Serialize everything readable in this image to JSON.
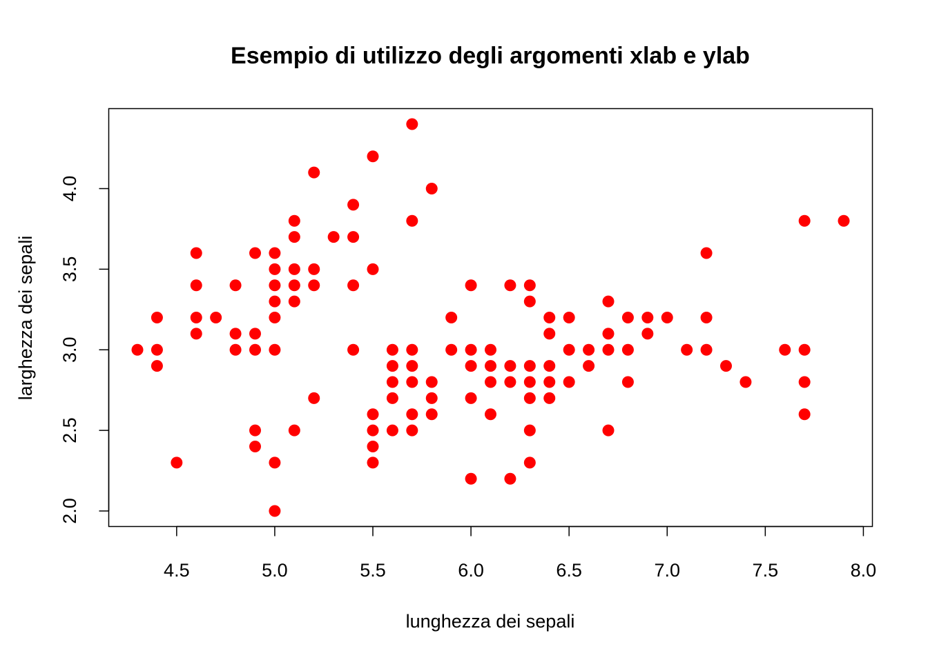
{
  "chart_data": {
    "type": "scatter",
    "title": "Esempio di utilizzo degli argomenti xlab e ylab",
    "xlabel": "lunghezza dei sepali",
    "ylabel": "larghezza dei sepali",
    "xlim": [
      4.3,
      7.9
    ],
    "ylim": [
      2.0,
      4.4
    ],
    "x_ticks": [
      "4.5",
      "5.0",
      "5.5",
      "6.0",
      "6.5",
      "7.0",
      "7.5",
      "8.0"
    ],
    "y_ticks": [
      "2.0",
      "2.5",
      "3.0",
      "3.5",
      "4.0"
    ],
    "grid": false,
    "marker_color": "#ff0000",
    "points": [
      [
        4.3,
        3.0
      ],
      [
        4.4,
        3.2
      ],
      [
        4.4,
        3.0
      ],
      [
        4.4,
        2.9
      ],
      [
        4.5,
        2.3
      ],
      [
        4.6,
        3.6
      ],
      [
        4.6,
        3.4
      ],
      [
        4.6,
        3.2
      ],
      [
        4.6,
        3.1
      ],
      [
        4.7,
        3.2
      ],
      [
        4.8,
        3.4
      ],
      [
        4.8,
        3.1
      ],
      [
        4.8,
        3.0
      ],
      [
        4.9,
        3.6
      ],
      [
        4.9,
        3.1
      ],
      [
        4.9,
        3.0
      ],
      [
        4.9,
        2.5
      ],
      [
        4.9,
        2.4
      ],
      [
        5.0,
        3.6
      ],
      [
        5.0,
        3.5
      ],
      [
        5.0,
        3.4
      ],
      [
        5.0,
        3.3
      ],
      [
        5.0,
        3.2
      ],
      [
        5.0,
        3.0
      ],
      [
        5.0,
        2.3
      ],
      [
        5.0,
        2.0
      ],
      [
        5.1,
        3.8
      ],
      [
        5.1,
        3.7
      ],
      [
        5.1,
        3.5
      ],
      [
        5.1,
        3.4
      ],
      [
        5.1,
        3.3
      ],
      [
        5.1,
        2.5
      ],
      [
        5.2,
        4.1
      ],
      [
        5.2,
        3.5
      ],
      [
        5.2,
        3.4
      ],
      [
        5.2,
        2.7
      ],
      [
        5.3,
        3.7
      ],
      [
        5.4,
        3.9
      ],
      [
        5.4,
        3.7
      ],
      [
        5.4,
        3.4
      ],
      [
        5.4,
        3.0
      ],
      [
        5.5,
        4.2
      ],
      [
        5.5,
        3.5
      ],
      [
        5.5,
        2.6
      ],
      [
        5.5,
        2.5
      ],
      [
        5.5,
        2.4
      ],
      [
        5.5,
        2.3
      ],
      [
        5.6,
        3.0
      ],
      [
        5.6,
        2.9
      ],
      [
        5.6,
        2.8
      ],
      [
        5.6,
        2.7
      ],
      [
        5.6,
        2.5
      ],
      [
        5.7,
        4.4
      ],
      [
        5.7,
        3.8
      ],
      [
        5.7,
        3.0
      ],
      [
        5.7,
        2.9
      ],
      [
        5.7,
        2.8
      ],
      [
        5.7,
        2.6
      ],
      [
        5.7,
        2.5
      ],
      [
        5.8,
        4.0
      ],
      [
        5.8,
        2.8
      ],
      [
        5.8,
        2.7
      ],
      [
        5.8,
        2.6
      ],
      [
        5.9,
        3.2
      ],
      [
        5.9,
        3.0
      ],
      [
        6.0,
        3.4
      ],
      [
        6.0,
        3.0
      ],
      [
        6.0,
        2.9
      ],
      [
        6.0,
        2.7
      ],
      [
        6.0,
        2.2
      ],
      [
        6.1,
        3.0
      ],
      [
        6.1,
        2.9
      ],
      [
        6.1,
        2.8
      ],
      [
        6.1,
        2.6
      ],
      [
        6.2,
        3.4
      ],
      [
        6.2,
        2.9
      ],
      [
        6.2,
        2.8
      ],
      [
        6.2,
        2.2
      ],
      [
        6.3,
        3.4
      ],
      [
        6.3,
        3.3
      ],
      [
        6.3,
        2.9
      ],
      [
        6.3,
        2.8
      ],
      [
        6.3,
        2.7
      ],
      [
        6.3,
        2.5
      ],
      [
        6.3,
        2.3
      ],
      [
        6.4,
        3.2
      ],
      [
        6.4,
        3.1
      ],
      [
        6.4,
        2.9
      ],
      [
        6.4,
        2.8
      ],
      [
        6.4,
        2.7
      ],
      [
        6.5,
        3.2
      ],
      [
        6.5,
        3.0
      ],
      [
        6.5,
        2.8
      ],
      [
        6.6,
        3.0
      ],
      [
        6.6,
        2.9
      ],
      [
        6.7,
        3.3
      ],
      [
        6.7,
        3.1
      ],
      [
        6.7,
        3.0
      ],
      [
        6.7,
        2.5
      ],
      [
        6.8,
        3.2
      ],
      [
        6.8,
        3.0
      ],
      [
        6.8,
        2.8
      ],
      [
        6.9,
        3.2
      ],
      [
        6.9,
        3.1
      ],
      [
        7.0,
        3.2
      ],
      [
        7.1,
        3.0
      ],
      [
        7.2,
        3.6
      ],
      [
        7.2,
        3.2
      ],
      [
        7.2,
        3.0
      ],
      [
        7.3,
        2.9
      ],
      [
        7.4,
        2.8
      ],
      [
        7.6,
        3.0
      ],
      [
        7.7,
        3.8
      ],
      [
        7.7,
        3.0
      ],
      [
        7.7,
        2.8
      ],
      [
        7.7,
        2.6
      ],
      [
        7.9,
        3.8
      ]
    ]
  }
}
